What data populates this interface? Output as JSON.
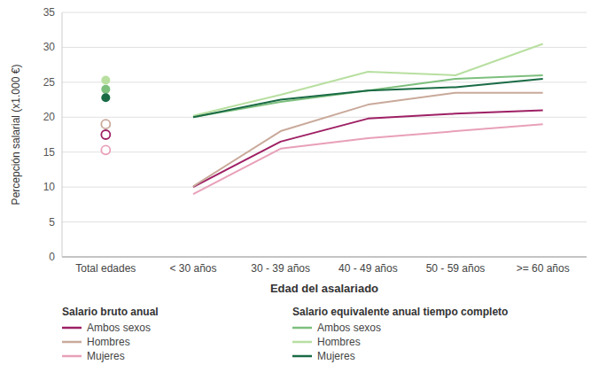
{
  "chart_data": {
    "type": "line",
    "categories": [
      "Total edades",
      "< 30 años",
      "30 - 39 años",
      "40 - 49 años",
      "50 - 59 años",
      ">= 60 años"
    ],
    "x_label": "Edad del asalariado",
    "y_label": "Percepción salarial (x1.000 €)",
    "ylim": [
      0,
      35
    ],
    "yticks": [
      0,
      5,
      10,
      15,
      20,
      25,
      30,
      35
    ],
    "grid": true,
    "legend": "bottom",
    "series": [
      {
        "name": "Ambos sexos",
        "group": "Salario bruto anual",
        "type": "line",
        "color": "#9e2064",
        "values": [
          null,
          10.0,
          16.5,
          19.8,
          20.5,
          21.0
        ]
      },
      {
        "name": "Hombres",
        "group": "Salario bruto anual",
        "type": "line",
        "color": "#c9a99a",
        "values": [
          null,
          10.1,
          18.0,
          21.8,
          23.5,
          23.5
        ]
      },
      {
        "name": "Mujeres",
        "group": "Salario bruto anual",
        "type": "line",
        "color": "#e8a0b8",
        "values": [
          null,
          9.0,
          15.5,
          17.0,
          18.0,
          19.0
        ]
      },
      {
        "name": "Ambos sexos",
        "group": "Salario equivalente anual tiempo completo",
        "type": "line",
        "color": "#7dbf7d",
        "values": [
          null,
          20.0,
          22.2,
          23.8,
          25.5,
          26.0
        ]
      },
      {
        "name": "Hombres",
        "group": "Salario equivalente anual tiempo completo",
        "type": "line",
        "color": "#b8dfa0",
        "values": [
          null,
          20.2,
          23.2,
          26.5,
          26.0,
          30.5
        ]
      },
      {
        "name": "Mujeres",
        "group": "Salario equivalente anual tiempo completo",
        "type": "line",
        "color": "#1a6b45",
        "values": [
          null,
          20.0,
          22.5,
          23.8,
          24.3,
          25.5
        ]
      },
      {
        "type": "scatter",
        "marker": "circle",
        "color": "#b8dfa0",
        "values": [
          25.3,
          null,
          null,
          null,
          null,
          null
        ]
      },
      {
        "type": "scatter",
        "marker": "circle",
        "color": "#7dbf7d",
        "values": [
          24.0,
          null,
          null,
          null,
          null,
          null
        ]
      },
      {
        "type": "scatter",
        "marker": "circle",
        "color": "#1a6b45",
        "values": [
          22.8,
          null,
          null,
          null,
          null,
          null
        ]
      },
      {
        "type": "scatter",
        "marker": "open-circle",
        "color": "#c9a99a",
        "values": [
          19.0,
          null,
          null,
          null,
          null,
          null
        ]
      },
      {
        "type": "scatter",
        "marker": "open-circle",
        "color": "#9e2064",
        "values": [
          17.5,
          null,
          null,
          null,
          null,
          null
        ]
      },
      {
        "type": "scatter",
        "marker": "open-circle",
        "color": "#e8a0b8",
        "values": [
          15.3,
          null,
          null,
          null,
          null,
          null
        ]
      }
    ]
  }
}
